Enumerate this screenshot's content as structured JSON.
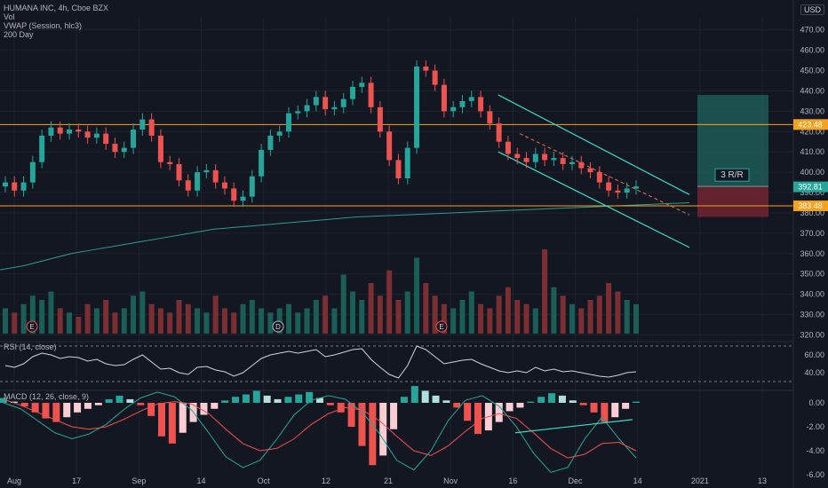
{
  "legend": {
    "symbol_line": "HUMANA INC, 4h, Cboe BZX",
    "vol_line": "Vol",
    "vwap_line": "VWAP (Session, hlc3)",
    "ma_line": "200 Day"
  },
  "currency_badge": "USD",
  "rsi_label": "RSI (14, close)",
  "macd_label": "MACD (12, 26, close, 9)",
  "rr_label": "3 R/R",
  "colors": {
    "background": "#131722",
    "up": "#26a69a",
    "down": "#ef5350",
    "resistance": "#f7a21b",
    "channel": "#3fd9c8",
    "ma": "#2e9c8f",
    "rsi": "#d1d4dc",
    "macd": "#26a69a",
    "signal": "#ef5350",
    "target_zone": "#1f5f5a",
    "stop_zone": "#6b2430"
  },
  "chart_data": {
    "type": "candlestick",
    "title": "HUMANA INC, 4h, Cboe BZX",
    "price_axis": {
      "ticks": [
        470,
        460,
        450,
        440,
        430,
        420,
        410,
        400,
        390,
        380,
        370,
        360,
        350,
        340,
        330,
        320
      ],
      "ylim": [
        318,
        476
      ]
    },
    "x_ticks": [
      "Aug",
      "17",
      "Sep",
      "14",
      "Oct",
      "12",
      "21",
      "Nov",
      "16",
      "Dec",
      "14",
      "2021",
      "13"
    ],
    "price_labels": [
      {
        "text": "423.48",
        "value": 423.48,
        "color": "#f7a21b"
      },
      {
        "text": "392.81",
        "value": 392.81,
        "color": "#26a69a"
      },
      {
        "text": "383.48",
        "value": 383.48,
        "color": "#f7a21b"
      }
    ],
    "horizontal_levels": [
      423.48,
      383.48
    ],
    "close_series": [
      395,
      391,
      395,
      405,
      418,
      422,
      419,
      421,
      420,
      417,
      419,
      414,
      410,
      412,
      421,
      426,
      418,
      405,
      404,
      396,
      391,
      400,
      401,
      395,
      392,
      386,
      388,
      398,
      411,
      418,
      420,
      429,
      430,
      433,
      437,
      431,
      432,
      436,
      442,
      444,
      432,
      420,
      406,
      397,
      412,
      452,
      450,
      443,
      430,
      432,
      435,
      437,
      430,
      424,
      415,
      409,
      407,
      405,
      409,
      406,
      407,
      404,
      405,
      402,
      400,
      395,
      391,
      390,
      392,
      393
    ],
    "ma200_series": [
      352,
      354,
      357,
      360,
      362,
      364,
      366,
      368,
      370,
      372,
      373,
      374,
      375,
      376,
      377,
      378,
      378.5,
      379,
      379.5,
      380,
      380.5,
      381,
      381.5,
      382,
      382.5,
      383,
      383.5,
      384,
      384.5,
      385
    ],
    "channel": {
      "upper": [
        [
          438,
          16
        ],
        [
          389,
          40
        ]
      ],
      "lower": [
        [
          410,
          16
        ],
        [
          363,
          40
        ]
      ],
      "mid": [
        [
          419,
          19
        ],
        [
          379,
          40
        ]
      ]
    },
    "position": {
      "target": 438,
      "entry": 393,
      "stop": 378,
      "label": "3 R/R"
    },
    "volume_events": [
      "E",
      "D",
      "E"
    ],
    "volume_series": [
      6,
      5,
      7,
      9,
      8,
      10,
      6,
      5,
      4,
      7,
      6,
      8,
      5,
      6,
      9,
      10,
      7,
      6,
      5,
      8,
      7,
      6,
      5,
      9,
      6,
      5,
      7,
      8,
      6,
      5,
      6,
      7,
      5,
      6,
      8,
      9,
      6,
      14,
      10,
      8,
      12,
      9,
      15,
      8,
      10,
      18,
      12,
      9,
      7,
      6,
      8,
      10,
      7,
      6,
      9,
      11,
      8,
      7,
      6,
      20,
      11,
      9,
      7,
      6,
      8,
      9,
      12,
      10,
      8,
      7
    ],
    "rsi": {
      "ticks": [
        60.0,
        40.0
      ],
      "levels": [
        70,
        30
      ],
      "values": [
        48,
        46,
        50,
        58,
        62,
        60,
        56,
        58,
        57,
        53,
        55,
        50,
        48,
        49,
        55,
        60,
        52,
        44,
        45,
        40,
        38,
        46,
        47,
        43,
        41,
        36,
        40,
        48,
        56,
        60,
        62,
        64,
        62,
        64,
        66,
        58,
        60,
        63,
        66,
        67,
        55,
        46,
        38,
        34,
        48,
        70,
        66,
        58,
        50,
        52,
        54,
        55,
        50,
        46,
        42,
        40,
        42,
        40,
        46,
        42,
        44,
        41,
        42,
        40,
        38,
        36,
        35,
        37,
        40,
        41
      ]
    },
    "macd": {
      "ticks": [
        0.0,
        -2.0,
        -4.0,
        -6.0
      ],
      "histogram": [
        0.4,
        0.1,
        -0.3,
        -0.8,
        -1.3,
        -1.6,
        -1.2,
        -0.8,
        -0.5,
        -0.2,
        0.3,
        0.6,
        0.3,
        -0.2,
        -1.1,
        -2.8,
        -3.4,
        -2.5,
        -1.6,
        -1.0,
        -0.5,
        0.2,
        0.5,
        0.7,
        1.0,
        0.6,
        0.3,
        0.5,
        0.7,
        0.9,
        0.4,
        -0.2,
        -0.8,
        -2.0,
        -3.6,
        -5.2,
        -4.4,
        -2.2,
        0.5,
        1.4,
        1.0,
        0.6,
        0.2,
        -0.4,
        -1.5,
        -2.6,
        -2.3,
        -1.6,
        -0.7,
        -0.4,
        0.1,
        0.5,
        0.8,
        0.6,
        0.2,
        -0.2,
        -0.8,
        -1.6,
        -1.2,
        -0.5,
        0.1
      ],
      "macd_line": [
        0.0,
        -0.5,
        -1.5,
        -2.5,
        -3.0,
        -2.6,
        -1.8,
        -0.6,
        0.4,
        0.9,
        0.5,
        -0.6,
        -2.5,
        -4.5,
        -5.4,
        -4.8,
        -3.0,
        -1.0,
        0.2,
        0.6,
        0.3,
        -0.8,
        -2.6,
        -4.8,
        -5.6,
        -4.0,
        -1.5,
        0.2,
        0.6,
        -0.3,
        -2.0,
        -4.2,
        -5.8,
        -5.4,
        -3.0,
        -1.2,
        -3.0,
        -4.6
      ],
      "signal_line": [
        0.3,
        -0.2,
        -0.8,
        -1.4,
        -2.0,
        -2.2,
        -2.0,
        -1.4,
        -0.7,
        -0.1,
        0.1,
        -0.1,
        -0.9,
        -2.2,
        -3.4,
        -4.0,
        -3.8,
        -3.0,
        -1.8,
        -0.9,
        -0.4,
        -0.6,
        -1.5,
        -2.8,
        -4.0,
        -4.4,
        -3.6,
        -2.4,
        -1.3,
        -0.9,
        -1.3,
        -2.5,
        -3.8,
        -4.6,
        -4.3,
        -3.4,
        -3.3,
        -4.0
      ],
      "trendline": [
        [
          -0.9,
          0.78
        ],
        [
          -0.6,
          0.96
        ]
      ]
    }
  }
}
